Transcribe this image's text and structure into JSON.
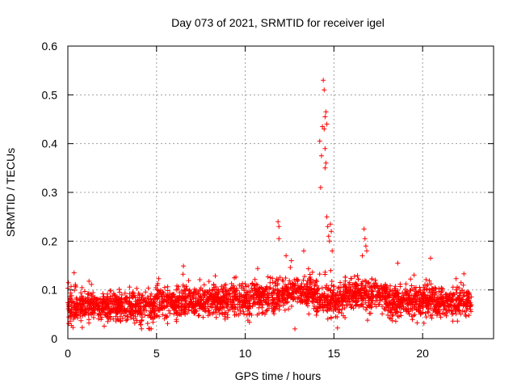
{
  "chart_data": {
    "type": "scatter",
    "title": "Day 073 of 2021, SRMTID for receiver igel",
    "xlabel": "GPS time / hours",
    "ylabel": "SRMTID / TECUs",
    "xlim": [
      0,
      24
    ],
    "ylim": [
      0,
      0.6
    ],
    "xticks": [
      0,
      5,
      10,
      15,
      20
    ],
    "yticks": [
      0,
      0.1,
      0.2,
      0.3,
      0.4,
      0.5,
      0.6
    ],
    "xtick_labels": [
      "0",
      "5",
      "10",
      "15",
      "20"
    ],
    "ytick_labels": [
      "0",
      "0.1",
      "0.2",
      "0.3",
      "0.4",
      "0.5",
      "0.6"
    ],
    "grid": true,
    "marker": "+",
    "series": [
      {
        "name": "SRMTID",
        "color": "#ff0000",
        "x_range": [
          0,
          22.75
        ],
        "baseline_segments": [
          {
            "x0": 0,
            "x1": 2.0,
            "mean": 0.065
          },
          {
            "x0": 2.0,
            "x1": 5.0,
            "mean": 0.065
          },
          {
            "x0": 5.0,
            "x1": 8.0,
            "mean": 0.075
          },
          {
            "x0": 8.0,
            "x1": 10.5,
            "mean": 0.078
          },
          {
            "x0": 10.5,
            "x1": 12.0,
            "mean": 0.085
          },
          {
            "x0": 12.0,
            "x1": 14.0,
            "mean": 0.095
          },
          {
            "x0": 14.0,
            "x1": 15.5,
            "mean": 0.08
          },
          {
            "x0": 15.5,
            "x1": 18.0,
            "mean": 0.09
          },
          {
            "x0": 18.0,
            "x1": 20.0,
            "mean": 0.075
          },
          {
            "x0": 20.0,
            "x1": 22.75,
            "mean": 0.075
          }
        ],
        "notable_points": [
          {
            "x": 0.35,
            "y": 0.135
          },
          {
            "x": 11.85,
            "y": 0.24
          },
          {
            "x": 11.9,
            "y": 0.23
          },
          {
            "x": 11.9,
            "y": 0.205
          },
          {
            "x": 12.3,
            "y": 0.17
          },
          {
            "x": 12.6,
            "y": 0.16
          },
          {
            "x": 13.3,
            "y": 0.18
          },
          {
            "x": 14.2,
            "y": 0.405
          },
          {
            "x": 14.25,
            "y": 0.31
          },
          {
            "x": 14.3,
            "y": 0.375
          },
          {
            "x": 14.35,
            "y": 0.435
          },
          {
            "x": 14.4,
            "y": 0.53
          },
          {
            "x": 14.45,
            "y": 0.51
          },
          {
            "x": 14.45,
            "y": 0.43
          },
          {
            "x": 14.5,
            "y": 0.455
          },
          {
            "x": 14.5,
            "y": 0.35
          },
          {
            "x": 14.5,
            "y": 0.39
          },
          {
            "x": 14.55,
            "y": 0.465
          },
          {
            "x": 14.55,
            "y": 0.36
          },
          {
            "x": 14.6,
            "y": 0.25
          },
          {
            "x": 14.6,
            "y": 0.44
          },
          {
            "x": 14.65,
            "y": 0.23
          },
          {
            "x": 14.7,
            "y": 0.21
          },
          {
            "x": 14.75,
            "y": 0.2
          },
          {
            "x": 14.8,
            "y": 0.235
          },
          {
            "x": 14.85,
            "y": 0.22
          },
          {
            "x": 14.9,
            "y": 0.18
          },
          {
            "x": 16.7,
            "y": 0.225
          },
          {
            "x": 16.75,
            "y": 0.205
          },
          {
            "x": 16.8,
            "y": 0.19
          },
          {
            "x": 16.85,
            "y": 0.18
          },
          {
            "x": 16.6,
            "y": 0.17
          },
          {
            "x": 18.6,
            "y": 0.155
          },
          {
            "x": 20.45,
            "y": 0.165
          },
          {
            "x": 12.8,
            "y": 0.02
          },
          {
            "x": 15.2,
            "y": 0.022
          }
        ]
      }
    ]
  }
}
